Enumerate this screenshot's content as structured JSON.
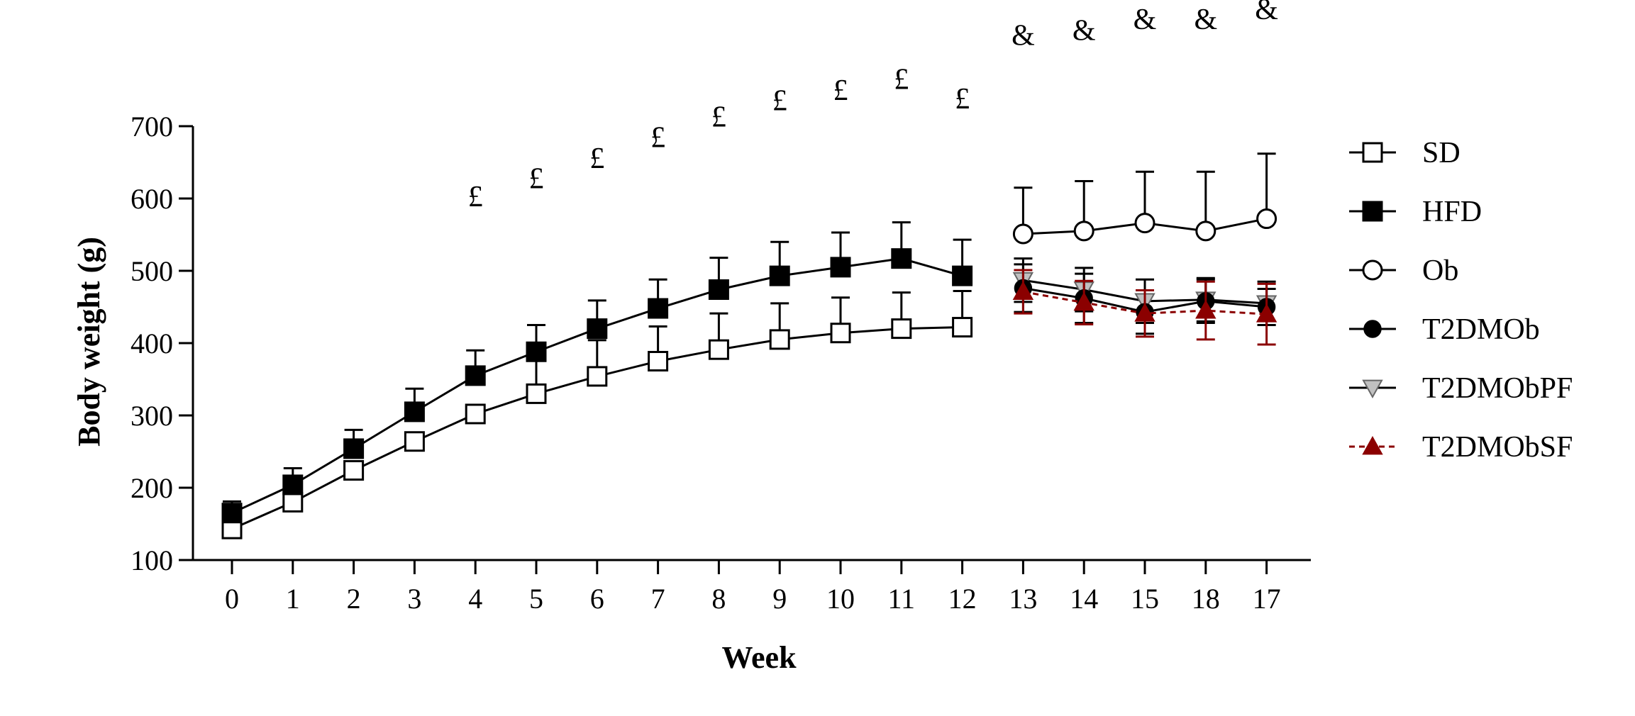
{
  "chart_data": {
    "type": "line",
    "xlabel": "Week",
    "ylabel": "Body weight (g)",
    "categories": [
      "0",
      "1",
      "2",
      "3",
      "4",
      "5",
      "6",
      "7",
      "8",
      "9",
      "10",
      "11",
      "12",
      "13",
      "14",
      "15",
      "18",
      "17"
    ],
    "ylim": [
      100,
      700
    ],
    "yticks": [
      100,
      200,
      300,
      400,
      500,
      600,
      700
    ],
    "legend_position": "right",
    "series": [
      {
        "name": "SD",
        "marker": "square-open",
        "line": "solid",
        "color": "#000000",
        "values": [
          143,
          180,
          224,
          264,
          302,
          330,
          354,
          375,
          391,
          405,
          414,
          420,
          422,
          null,
          null,
          null,
          null,
          null
        ],
        "error": [
          null,
          null,
          null,
          null,
          null,
          47,
          50,
          48,
          50,
          50,
          49,
          50,
          50,
          null,
          null,
          null,
          null,
          null
        ]
      },
      {
        "name": "HFD",
        "marker": "square-filled",
        "line": "solid",
        "color": "#000000",
        "values": [
          165,
          204,
          254,
          305,
          355,
          388,
          420,
          448,
          474,
          493,
          505,
          517,
          493,
          null,
          null,
          null,
          null,
          null
        ],
        "error": [
          16,
          23,
          26,
          32,
          35,
          37,
          39,
          40,
          44,
          47,
          48,
          50,
          50,
          null,
          null,
          null,
          null,
          null
        ]
      },
      {
        "name": "Ob",
        "marker": "circle-open",
        "line": "solid",
        "color": "#000000",
        "values": [
          null,
          null,
          null,
          null,
          null,
          null,
          null,
          null,
          null,
          null,
          null,
          null,
          null,
          551,
          555,
          566,
          555,
          572
        ],
        "error": [
          null,
          null,
          null,
          null,
          null,
          null,
          null,
          null,
          null,
          null,
          null,
          null,
          null,
          64,
          69,
          71,
          82,
          90
        ]
      },
      {
        "name": "T2DMOb",
        "marker": "circle-filled",
        "line": "solid",
        "color": "#000000",
        "values": [
          null,
          null,
          null,
          null,
          null,
          null,
          null,
          null,
          null,
          null,
          null,
          null,
          null,
          476,
          462,
          443,
          458,
          450
        ],
        "error": [
          null,
          null,
          null,
          null,
          null,
          null,
          null,
          null,
          null,
          null,
          null,
          null,
          null,
          33,
          34,
          30,
          30,
          25
        ]
      },
      {
        "name": "T2DMObPF",
        "marker": "triangle-down-gray",
        "line": "solid",
        "color": "#000000",
        "fill": "#c0c0c0",
        "values": [
          null,
          null,
          null,
          null,
          null,
          null,
          null,
          null,
          null,
          null,
          null,
          null,
          null,
          487,
          474,
          458,
          460,
          455
        ],
        "error": [
          null,
          null,
          null,
          null,
          null,
          null,
          null,
          null,
          null,
          null,
          null,
          null,
          null,
          30,
          30,
          30,
          30,
          30
        ]
      },
      {
        "name": "T2DMObSF",
        "marker": "triangle-up-red",
        "line": "dashed",
        "color": "#8b0000",
        "values": [
          null,
          null,
          null,
          null,
          null,
          null,
          null,
          null,
          null,
          null,
          null,
          null,
          null,
          471,
          456,
          441,
          445,
          440
        ],
        "error": [
          null,
          null,
          null,
          null,
          null,
          null,
          null,
          null,
          null,
          null,
          null,
          null,
          null,
          30,
          30,
          32,
          40,
          42
        ]
      }
    ],
    "annotations": [
      {
        "text": "£",
        "x_index": 4,
        "y": 603
      },
      {
        "text": "£",
        "x_index": 5,
        "y": 628
      },
      {
        "text": "£",
        "x_index": 6,
        "y": 656
      },
      {
        "text": "£",
        "x_index": 7,
        "y": 685
      },
      {
        "text": "£",
        "x_index": 8,
        "y": 713
      },
      {
        "text": "£",
        "x_index": 9,
        "y": 736
      },
      {
        "text": "£",
        "x_index": 10,
        "y": 750
      },
      {
        "text": "£",
        "x_index": 11,
        "y": 765
      },
      {
        "text": "£",
        "x_index": 12,
        "y": 738
      },
      {
        "text": "&",
        "x_index": 13,
        "y": 826
      },
      {
        "text": "&",
        "x_index": 14,
        "y": 833
      },
      {
        "text": "&",
        "x_index": 15,
        "y": 848
      },
      {
        "text": "&",
        "x_index": 16,
        "y": 848
      },
      {
        "text": "&",
        "x_index": 17,
        "y": 862
      }
    ]
  }
}
